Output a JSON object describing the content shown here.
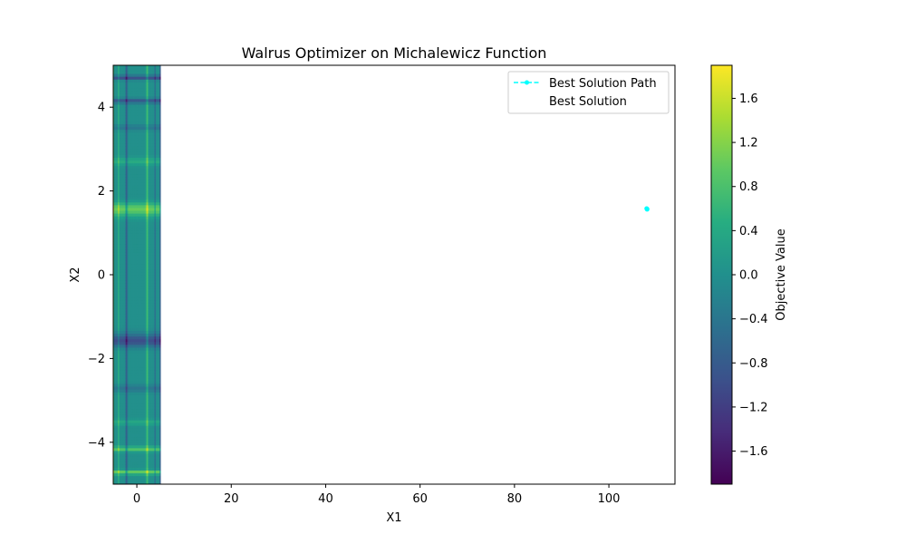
{
  "chart_data": {
    "type": "heatmap",
    "title": "Walrus Optimizer on Michalewicz Function",
    "xlabel": "X1",
    "ylabel": "X2",
    "xlim": [
      -5,
      114
    ],
    "ylim": [
      -5,
      5
    ],
    "x_ticks": [
      0,
      20,
      40,
      60,
      80,
      100
    ],
    "x_tick_labels": [
      "0",
      "20",
      "40",
      "60",
      "80",
      "100"
    ],
    "y_ticks": [
      -4,
      -2,
      0,
      2,
      4
    ],
    "y_tick_labels": [
      "−4",
      "−2",
      "0",
      "2",
      "4"
    ],
    "heatmap": {
      "function": "michalewicz",
      "x_range": [
        -5,
        5
      ],
      "y_range": [
        -5,
        5
      ],
      "colormap": "viridis"
    },
    "colorbar": {
      "label": "Objective Value",
      "min": -1.9,
      "max": 1.9,
      "ticks": [
        -1.6,
        -1.2,
        -0.8,
        -0.4,
        0.0,
        0.4,
        0.8,
        1.2,
        1.6
      ],
      "tick_labels": [
        "−1.6",
        "−1.2",
        "−0.8",
        "−0.4",
        "0.0",
        "0.4",
        "0.8",
        "1.2",
        "1.6"
      ]
    },
    "series": [
      {
        "name": "Best Solution Path",
        "style": "dashed-line-with-markers",
        "color": "#00FFFF",
        "points": [
          {
            "x": 108.1,
            "y": 1.56
          },
          {
            "x": 108.1,
            "y": 1.57
          },
          {
            "x": 108.0,
            "y": 1.58
          }
        ]
      },
      {
        "name": "Best Solution",
        "style": "marker",
        "color": "#FF0000",
        "points": []
      }
    ],
    "legend_position": "top-right",
    "grid": false
  }
}
